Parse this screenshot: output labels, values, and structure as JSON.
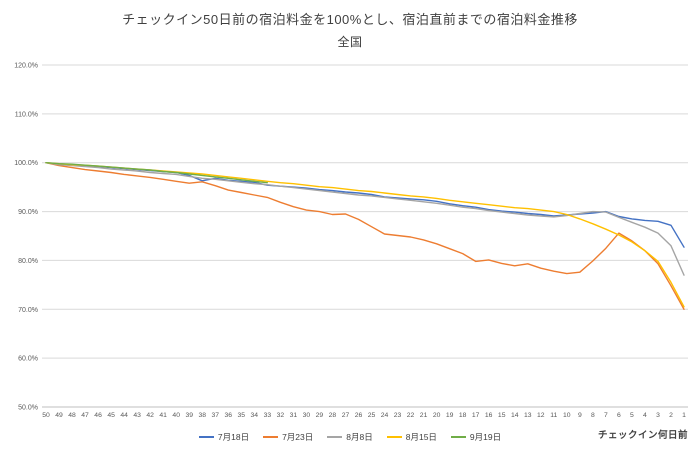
{
  "title": "チェックイン50日前の宿泊料金を100%とし、宿泊直前までの宿泊料金推移",
  "subtitle": "全国",
  "xaxis_title": "チェックイン何日前",
  "chart_data": {
    "type": "line",
    "title": "チェックイン50日前の宿泊料金を100%とし、宿泊直前までの宿泊料金推移",
    "subtitle": "全国",
    "xlabel": "チェックイン何日前",
    "ylabel": "",
    "ylim": [
      50,
      120
    ],
    "ytick_step": 10,
    "ytick_suffix": "%",
    "grid": true,
    "legend_position": "bottom",
    "x": [
      50,
      49,
      48,
      47,
      46,
      45,
      44,
      43,
      42,
      41,
      40,
      39,
      38,
      37,
      36,
      35,
      34,
      33,
      32,
      31,
      30,
      29,
      28,
      27,
      26,
      25,
      24,
      23,
      22,
      21,
      20,
      19,
      18,
      17,
      16,
      15,
      14,
      13,
      12,
      11,
      10,
      9,
      8,
      7,
      6,
      5,
      4,
      3,
      2,
      1
    ],
    "series": [
      {
        "name": "7月18日",
        "color": "#4472C4",
        "values": [
          100.0,
          99.7,
          99.5,
          99.3,
          99.2,
          99.0,
          98.8,
          98.6,
          98.4,
          98.2,
          98.0,
          97.4,
          96.3,
          96.8,
          96.4,
          96.2,
          96.0,
          95.4,
          95.2,
          95.0,
          94.8,
          94.5,
          94.3,
          94.0,
          93.8,
          93.5,
          93.0,
          92.8,
          92.6,
          92.4,
          92.1,
          91.6,
          91.2,
          90.9,
          90.4,
          90.1,
          89.9,
          89.6,
          89.4,
          89.1,
          89.3,
          89.5,
          89.7,
          90.0,
          89.0,
          88.5,
          88.2,
          88.0,
          87.2,
          82.7
        ]
      },
      {
        "name": "7月23日",
        "color": "#ED7D31",
        "values": [
          100.0,
          99.4,
          99.0,
          98.6,
          98.3,
          98.0,
          97.6,
          97.3,
          97.0,
          96.6,
          96.2,
          95.8,
          96.1,
          95.3,
          94.4,
          93.9,
          93.4,
          92.9,
          91.9,
          91.0,
          90.3,
          90.0,
          89.4,
          89.5,
          88.4,
          86.9,
          85.4,
          85.1,
          84.8,
          84.2,
          83.4,
          82.4,
          81.4,
          79.8,
          80.1,
          79.4,
          78.9,
          79.3,
          78.4,
          77.8,
          77.3,
          77.6,
          79.9,
          82.5,
          85.6,
          84.0,
          82.0,
          79.3,
          74.8,
          70.0
        ]
      },
      {
        "name": "8月8日",
        "color": "#A5A5A5",
        "values": [
          100.0,
          99.6,
          99.4,
          99.2,
          99.0,
          98.7,
          98.5,
          98.3,
          98.0,
          97.8,
          97.6,
          97.2,
          96.8,
          96.6,
          96.3,
          96.0,
          95.7,
          95.5,
          95.2,
          94.9,
          94.6,
          94.3,
          94.0,
          93.7,
          93.4,
          93.2,
          92.9,
          92.6,
          92.3,
          92.0,
          91.7,
          91.3,
          90.9,
          90.6,
          90.2,
          89.9,
          89.6,
          89.3,
          89.1,
          88.9,
          89.2,
          89.6,
          90.0,
          89.9,
          88.8,
          87.8,
          86.8,
          85.6,
          83.0,
          77.0
        ]
      },
      {
        "name": "8月15日",
        "color": "#FFC000",
        "values": [
          100.0,
          99.8,
          99.6,
          99.5,
          99.3,
          99.1,
          98.9,
          98.7,
          98.5,
          98.3,
          98.1,
          97.9,
          97.7,
          97.4,
          97.1,
          96.8,
          96.5,
          96.2,
          95.9,
          95.7,
          95.4,
          95.1,
          94.9,
          94.6,
          94.3,
          94.1,
          93.8,
          93.5,
          93.2,
          93.0,
          92.7,
          92.3,
          92.0,
          91.7,
          91.4,
          91.1,
          90.8,
          90.6,
          90.3,
          90.0,
          89.4,
          88.5,
          87.5,
          86.4,
          85.2,
          83.8,
          82.0,
          79.8,
          75.5,
          70.5
        ]
      },
      {
        "name": "9月19日",
        "color": "#70AD47",
        "values": [
          100.0,
          99.8,
          99.7,
          99.5,
          99.3,
          99.1,
          98.9,
          98.7,
          98.5,
          98.2,
          98.0,
          97.7,
          97.4,
          97.1,
          96.8,
          96.5,
          96.2,
          95.9,
          null,
          null,
          null,
          null,
          null,
          null,
          null,
          null,
          null,
          null,
          null,
          null,
          null,
          null,
          null,
          null,
          null,
          null,
          null,
          null,
          null,
          null,
          null,
          null,
          null,
          null,
          null,
          null,
          null,
          null,
          null,
          null
        ]
      }
    ]
  }
}
